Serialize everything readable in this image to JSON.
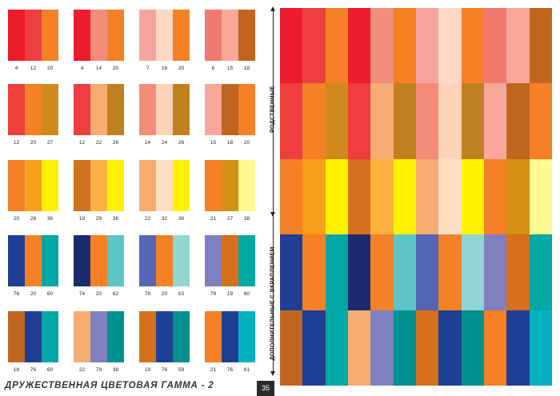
{
  "footer": {
    "title": "ДРУЖЕСТВЕННАЯ ЦВЕТОВАЯ ГАММА - 2",
    "page_number": "35"
  },
  "labels": {
    "related": "РОДСТВЕННЫЕ",
    "complementary": "ДОПОЛНИТЕЛЬНЫЕ С ВКРАПЛЕНИЕМ"
  },
  "palettes": [
    {
      "numbers": [
        "4",
        "12",
        "20"
      ],
      "colors": [
        "#ec1c2c",
        "#ef3e3e",
        "#f58025"
      ]
    },
    {
      "numbers": [
        "4",
        "14",
        "20"
      ],
      "colors": [
        "#ec1c2c",
        "#f48c7a",
        "#f58025"
      ]
    },
    {
      "numbers": [
        "7",
        "16",
        "20"
      ],
      "colors": [
        "#f7a4a0",
        "#fdd8c4",
        "#f58025"
      ]
    },
    {
      "numbers": [
        "6",
        "15",
        "18"
      ],
      "colors": [
        "#f27970",
        "#f8a89a",
        "#c06520"
      ]
    },
    {
      "numbers": [
        "12",
        "20",
        "27"
      ],
      "colors": [
        "#ef3e3e",
        "#f58025",
        "#cf8a1c"
      ]
    },
    {
      "numbers": [
        "12",
        "22",
        "26"
      ],
      "colors": [
        "#ef3e3e",
        "#f8ac72",
        "#c1801f"
      ]
    },
    {
      "numbers": [
        "14",
        "24",
        "26"
      ],
      "colors": [
        "#f48c7a",
        "#fdd4b8",
        "#c1801f"
      ]
    },
    {
      "numbers": [
        "15",
        "18",
        "20"
      ],
      "colors": [
        "#f8a89a",
        "#c06520",
        "#f58025"
      ]
    },
    {
      "numbers": [
        "20",
        "28",
        "36"
      ],
      "colors": [
        "#f58025",
        "#f8a01c",
        "#fff200"
      ]
    },
    {
      "numbers": [
        "19",
        "29",
        "36"
      ],
      "colors": [
        "#d4701e",
        "#fbb040",
        "#fff200"
      ]
    },
    {
      "numbers": [
        "22",
        "32",
        "36"
      ],
      "colors": [
        "#f8ac72",
        "#fde0c4",
        "#fff200"
      ]
    },
    {
      "numbers": [
        "21",
        "27",
        "38"
      ],
      "colors": [
        "#f58025",
        "#d59015",
        "#fff893"
      ]
    },
    {
      "numbers": [
        "76",
        "20",
        "60"
      ],
      "colors": [
        "#1e3f95",
        "#f58025",
        "#00a7a4"
      ]
    },
    {
      "numbers": [
        "74",
        "20",
        "62"
      ],
      "colors": [
        "#1b2b70",
        "#f58025",
        "#5ec4c8"
      ]
    },
    {
      "numbers": [
        "78",
        "20",
        "63"
      ],
      "colors": [
        "#5566b5",
        "#f58025",
        "#8fd6d2"
      ]
    },
    {
      "numbers": [
        "79",
        "19",
        "60"
      ],
      "colors": [
        "#7f80bf",
        "#d4701e",
        "#00a7a4"
      ]
    },
    {
      "numbers": [
        "18",
        "76",
        "60"
      ],
      "colors": [
        "#c06520",
        "#1e3f95",
        "#00a7a4"
      ]
    },
    {
      "numbers": [
        "22",
        "79",
        "38"
      ],
      "colors": [
        "#f8ac72",
        "#7f80bf",
        "#00908e"
      ]
    },
    {
      "numbers": [
        "19",
        "76",
        "59"
      ],
      "colors": [
        "#d4701e",
        "#1e3f95",
        "#00908e"
      ]
    },
    {
      "numbers": [
        "21",
        "76",
        "61"
      ],
      "colors": [
        "#f58025",
        "#1e3f95",
        "#00b2c0"
      ]
    }
  ],
  "big_grid": [
    [
      "#ec1c2c",
      "#ef3e3e",
      "#f58025",
      "#ec1c2c",
      "#f48c7a",
      "#f58025",
      "#f7a4a0",
      "#fdd8c4",
      "#f58025",
      "#f27970",
      "#f8a89a",
      "#c06520"
    ],
    [
      "#ef3e3e",
      "#f58025",
      "#cf8a1c",
      "#ef3e3e",
      "#f8ac72",
      "#c1801f",
      "#f48c7a",
      "#fdd4b8",
      "#c1801f",
      "#f8a89a",
      "#c06520",
      "#f58025"
    ],
    [
      "#f58025",
      "#f8a01c",
      "#fff200",
      "#d4701e",
      "#fbb040",
      "#fff200",
      "#f8ac72",
      "#fde0c4",
      "#fff200",
      "#f58025",
      "#d59015",
      "#fff893"
    ],
    [
      "#1e3f95",
      "#f58025",
      "#00a7a4",
      "#1b2b70",
      "#f58025",
      "#5ec4c8",
      "#5566b5",
      "#f58025",
      "#8fd6d2",
      "#7f80bf",
      "#d4701e",
      "#00a7a4"
    ],
    [
      "#c06520",
      "#1e3f95",
      "#00a7a4",
      "#f8ac72",
      "#7f80bf",
      "#00908e",
      "#d4701e",
      "#1e3f95",
      "#00908e",
      "#f58025",
      "#1e3f95",
      "#00b2c0"
    ]
  ]
}
